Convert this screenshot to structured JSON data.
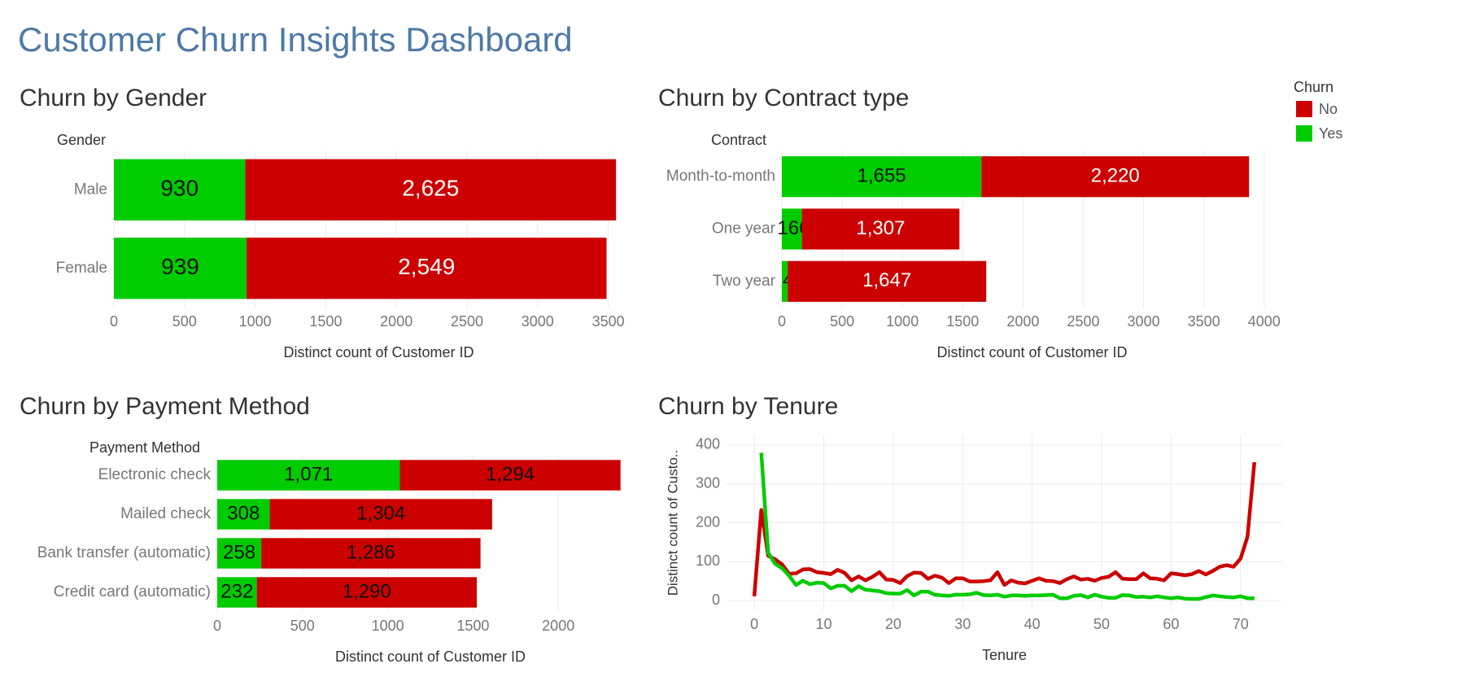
{
  "title": "Customer Churn Insights Dashboard",
  "chart_data": [
    {
      "type": "hbar",
      "title": "Churn by Gender",
      "category_title": "Gender",
      "x_label": "Distinct count of Customer ID",
      "legend_title": "Churn",
      "categories": [
        "Male",
        "Female"
      ],
      "series": [
        {
          "name": "Yes",
          "color": "#00cc00",
          "values": [
            930,
            939
          ]
        },
        {
          "name": "No",
          "color": "#cc0000",
          "values": [
            2625,
            2549
          ],
          "value_labels": [
            "2,625",
            "2,549"
          ]
        }
      ],
      "xlim": [
        0,
        3750
      ],
      "xticks": [
        0,
        500,
        1000,
        1500,
        2000,
        2500,
        3000,
        3500
      ],
      "grid": true
    },
    {
      "type": "hbar",
      "title": "Churn by Contract type",
      "category_title": "Contract",
      "x_label": "Distinct count of Customer ID",
      "categories": [
        "Month-to-month",
        "One year",
        "Two year"
      ],
      "series": [
        {
          "name": "Yes",
          "color": "#00cc00",
          "values": [
            1655,
            166,
            48
          ],
          "value_labels": [
            "1,655",
            "166",
            "48"
          ]
        },
        {
          "name": "No",
          "color": "#cc0000",
          "values": [
            2220,
            1307,
            1647
          ],
          "value_labels": [
            "2,220",
            "1,307",
            "1,647"
          ]
        }
      ],
      "xlim": [
        0,
        4150
      ],
      "xticks": [
        0,
        500,
        1000,
        1500,
        2000,
        2500,
        3000,
        3500,
        4000
      ],
      "grid": true
    },
    {
      "type": "hbar",
      "title": "Churn by Payment Method",
      "category_title": "Payment Method",
      "x_label": "Distinct count of Customer ID",
      "categories": [
        "Electronic check",
        "Mailed check",
        "Bank transfer (automatic)",
        "Credit card (automatic)"
      ],
      "series": [
        {
          "name": "Yes",
          "color": "#00cc00",
          "values": [
            1071,
            308,
            258,
            232
          ],
          "value_labels": [
            "1,071",
            "308",
            "258",
            "232"
          ]
        },
        {
          "name": "No",
          "color": "#cc0000",
          "values": [
            1294,
            1304,
            1286,
            1290
          ],
          "value_labels": [
            "1,294",
            "1,304",
            "1,286",
            "1,290"
          ]
        }
      ],
      "xlim": [
        0,
        2500
      ],
      "xticks": [
        0,
        500,
        1000,
        1500,
        2000
      ],
      "grid": true
    },
    {
      "type": "line",
      "title": "Churn by Tenure",
      "x_label": "Tenure",
      "y_label": "Distinct count of Custo..",
      "x": [
        0,
        1,
        2,
        3,
        4,
        5,
        6,
        7,
        8,
        9,
        10,
        11,
        12,
        13,
        14,
        15,
        16,
        17,
        18,
        19,
        20,
        21,
        22,
        23,
        24,
        25,
        26,
        27,
        28,
        29,
        30,
        31,
        32,
        33,
        34,
        35,
        36,
        37,
        38,
        39,
        40,
        41,
        42,
        43,
        44,
        45,
        46,
        47,
        48,
        49,
        50,
        51,
        52,
        53,
        54,
        55,
        56,
        57,
        58,
        59,
        60,
        61,
        62,
        63,
        64,
        65,
        66,
        67,
        68,
        69,
        70,
        71,
        72
      ],
      "series": [
        {
          "name": "No",
          "color": "#cc0000",
          "values": [
            11,
            233,
            115,
            106,
            93,
            69,
            70,
            80,
            81,
            73,
            71,
            68,
            79,
            71,
            52,
            62,
            52,
            61,
            73,
            54,
            53,
            45,
            63,
            72,
            71,
            56,
            64,
            59,
            45,
            57,
            57,
            49,
            49,
            50,
            52,
            73,
            40,
            52,
            46,
            44,
            51,
            57,
            51,
            50,
            45,
            55,
            62,
            54,
            56,
            51,
            58,
            61,
            73,
            56,
            55,
            55,
            70,
            57,
            56,
            52,
            70,
            68,
            65,
            68,
            76,
            67,
            76,
            87,
            91,
            87,
            108,
            164,
            356
          ]
        },
        {
          "name": "Yes",
          "color": "#00cc00",
          "values": [
            null,
            380,
            123,
            94,
            83,
            64,
            40,
            51,
            42,
            46,
            45,
            31,
            38,
            38,
            24,
            37,
            28,
            26,
            24,
            19,
            18,
            18,
            27,
            13,
            23,
            23,
            15,
            13,
            12,
            15,
            15,
            16,
            20,
            14,
            13,
            15,
            10,
            13,
            13,
            12,
            13,
            13,
            14,
            15,
            6,
            6,
            12,
            14,
            8,
            15,
            10,
            7,
            7,
            14,
            13,
            9,
            10,
            8,
            11,
            8,
            6,
            8,
            5,
            4,
            4,
            9,
            13,
            11,
            9,
            8,
            11,
            6,
            6
          ]
        }
      ],
      "xlim": [
        -4,
        76
      ],
      "xticks": [
        0,
        10,
        20,
        30,
        40,
        50,
        60,
        70
      ],
      "ylim": [
        -25,
        425
      ],
      "yticks": [
        0,
        100,
        200,
        300,
        400
      ],
      "grid": true
    }
  ]
}
